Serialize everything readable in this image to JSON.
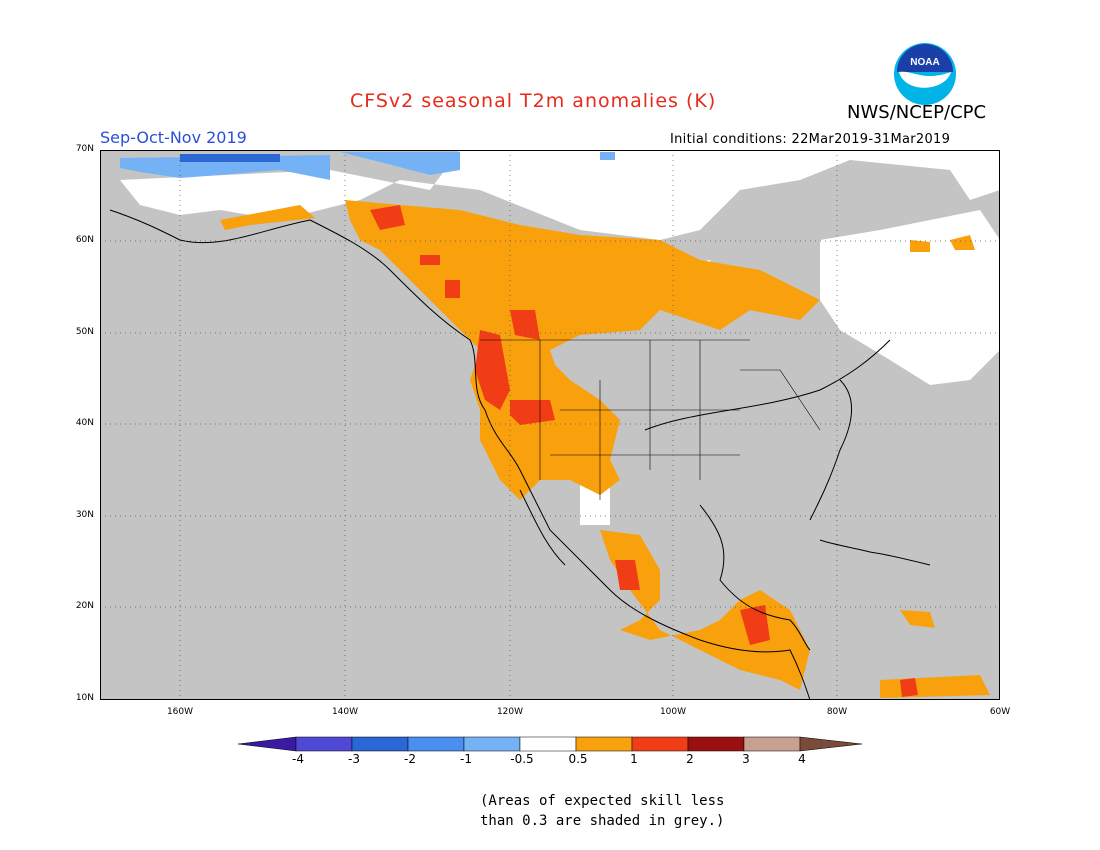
{
  "header": {
    "title": "CFSv2 seasonal T2m anomalies (K)",
    "org": "NWS/NCEP/CPC",
    "season": "Sep-Oct-Nov 2019",
    "initial_conditions": "Initial conditions: 22Mar2019-31Mar2019",
    "logo_text": "NOAA"
  },
  "map": {
    "lat_labels": [
      "70N",
      "60N",
      "50N",
      "40N",
      "30N",
      "20N",
      "10N"
    ],
    "lon_labels": [
      "160W",
      "140W",
      "120W",
      "100W",
      "80W",
      "60W"
    ],
    "lat_range": [
      10,
      70
    ],
    "lon_range": [
      -172,
      -60
    ],
    "grid": "dotted",
    "colors": {
      "no_skill": "#c4c4c4",
      "land_background": "#ffffff",
      "cool_deep": "#2c67d6",
      "cool_light": "#74b2f5",
      "warm_1": "#f9a00d",
      "warm_2": "#f03d16"
    }
  },
  "colorbar": {
    "labels": [
      "-4",
      "-3",
      "-2",
      "-1",
      "-0.5",
      "0.5",
      "1",
      "2",
      "3",
      "4"
    ],
    "colors": [
      "#3a1aa0",
      "#5048d6",
      "#2c67d6",
      "#4a8ef0",
      "#74b2f5",
      "#ffffff",
      "#f9a00d",
      "#f03d16",
      "#9a1010",
      "#c8a090",
      "#7a4a3a",
      "#6a3a2a"
    ]
  },
  "note": {
    "line1": "(Areas of expected skill less",
    "line2": "than 0.3 are shaded in grey.)"
  }
}
